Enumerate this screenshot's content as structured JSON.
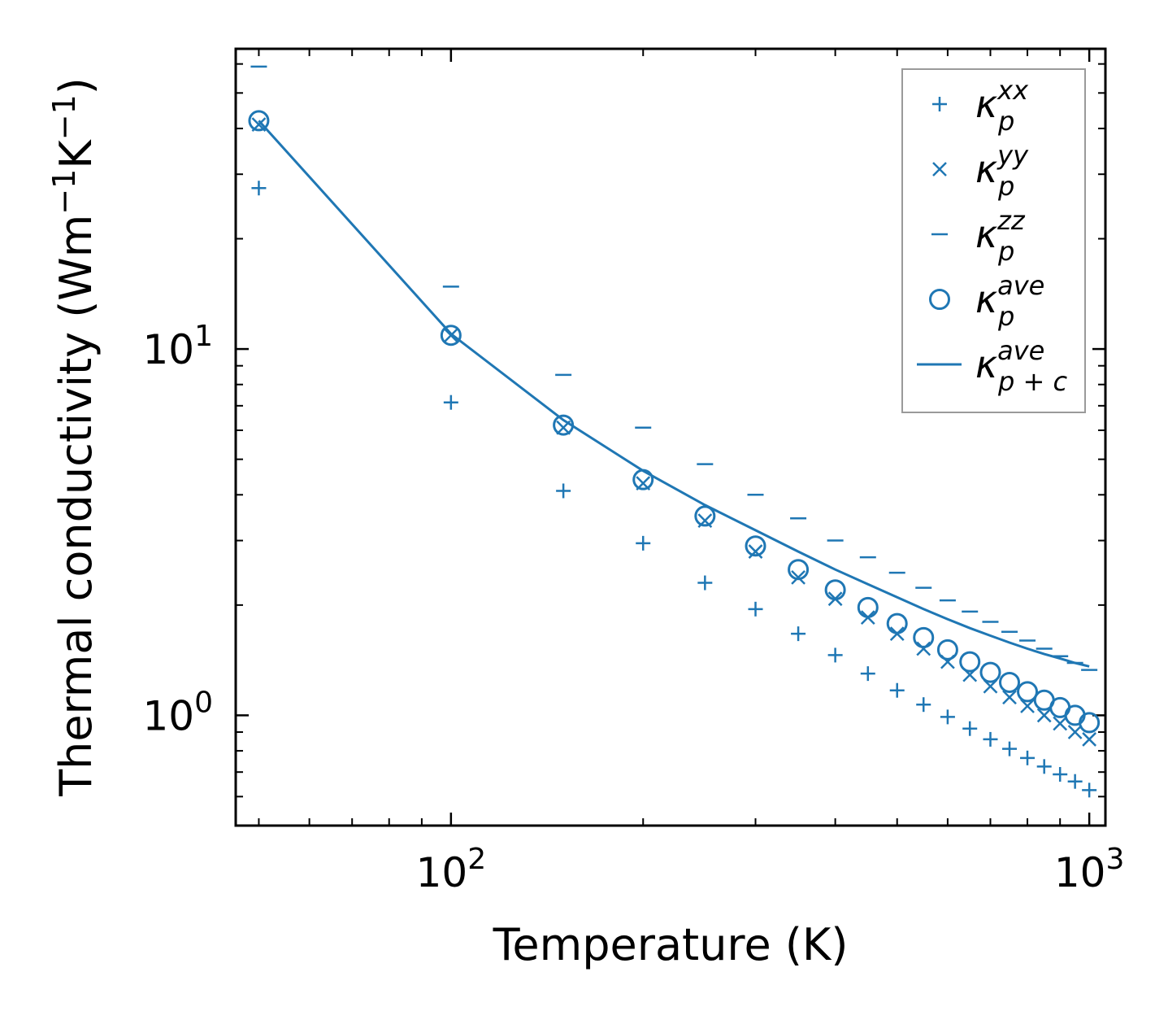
{
  "chart_data": {
    "type": "scatter",
    "xscale": "log",
    "yscale": "log",
    "title": "",
    "xlabel": "Temperature (K)",
    "ylabel": "Thermal conductivity (Wm",
    "ylabel_sup1": "−1",
    "ylabel_mid": "K",
    "ylabel_sup2": "−1",
    "ylabel_end": ")",
    "xlim": [
      46,
      1060
    ],
    "ylim": [
      0.5,
      66
    ],
    "color": "#1f77b4",
    "x_ticks": [
      {
        "value": 100,
        "base": "10",
        "exp": "2"
      },
      {
        "value": 1000,
        "base": "10",
        "exp": "3"
      }
    ],
    "y_ticks": [
      {
        "value": 1,
        "base": "10",
        "exp": "0"
      },
      {
        "value": 10,
        "base": "10",
        "exp": "1"
      }
    ],
    "x": [
      50,
      100,
      150,
      200,
      250,
      300,
      350,
      400,
      450,
      500,
      550,
      600,
      650,
      700,
      750,
      800,
      850,
      900,
      950,
      1000
    ],
    "series": [
      {
        "name": "κ_p^xx",
        "label_main": "κ",
        "label_sub": "p",
        "label_sup": "xx",
        "marker": "plus",
        "values": [
          27.5,
          7.15,
          4.1,
          2.95,
          2.3,
          1.95,
          1.67,
          1.46,
          1.3,
          1.17,
          1.07,
          0.99,
          0.92,
          0.86,
          0.81,
          0.765,
          0.725,
          0.69,
          0.66,
          0.625
        ]
      },
      {
        "name": "κ_p^yy",
        "label_main": "κ",
        "label_sub": "p",
        "label_sup": "yy",
        "marker": "x",
        "values": [
          41.0,
          10.9,
          6.1,
          4.3,
          3.4,
          2.8,
          2.38,
          2.08,
          1.85,
          1.67,
          1.52,
          1.4,
          1.29,
          1.2,
          1.12,
          1.06,
          1.0,
          0.95,
          0.9,
          0.86
        ]
      },
      {
        "name": "κ_p^zz",
        "label_main": "κ",
        "label_sub": "p",
        "label_sup": "zz",
        "marker": "hline",
        "values": [
          59.0,
          14.8,
          8.5,
          6.1,
          4.85,
          4.0,
          3.45,
          3.0,
          2.7,
          2.45,
          2.23,
          2.06,
          1.92,
          1.8,
          1.69,
          1.6,
          1.52,
          1.45,
          1.39,
          1.33
        ]
      },
      {
        "name": "κ_p^ave",
        "label_main": "κ",
        "label_sub": "p",
        "label_sup": "ave",
        "marker": "circle",
        "values": [
          42.0,
          10.9,
          6.2,
          4.4,
          3.5,
          2.9,
          2.5,
          2.2,
          1.97,
          1.78,
          1.63,
          1.51,
          1.4,
          1.31,
          1.23,
          1.16,
          1.1,
          1.05,
          1.0,
          0.955
        ]
      },
      {
        "name": "κ_p+c^ave",
        "label_main": "κ",
        "label_sub": "p + c",
        "label_sup": "ave",
        "marker": "line",
        "values": [
          42.0,
          11.0,
          6.4,
          4.65,
          3.75,
          3.2,
          2.8,
          2.5,
          2.28,
          2.1,
          1.95,
          1.83,
          1.73,
          1.65,
          1.58,
          1.52,
          1.47,
          1.43,
          1.39,
          1.36
        ]
      }
    ],
    "legend_position": "top-right",
    "grid": false
  }
}
